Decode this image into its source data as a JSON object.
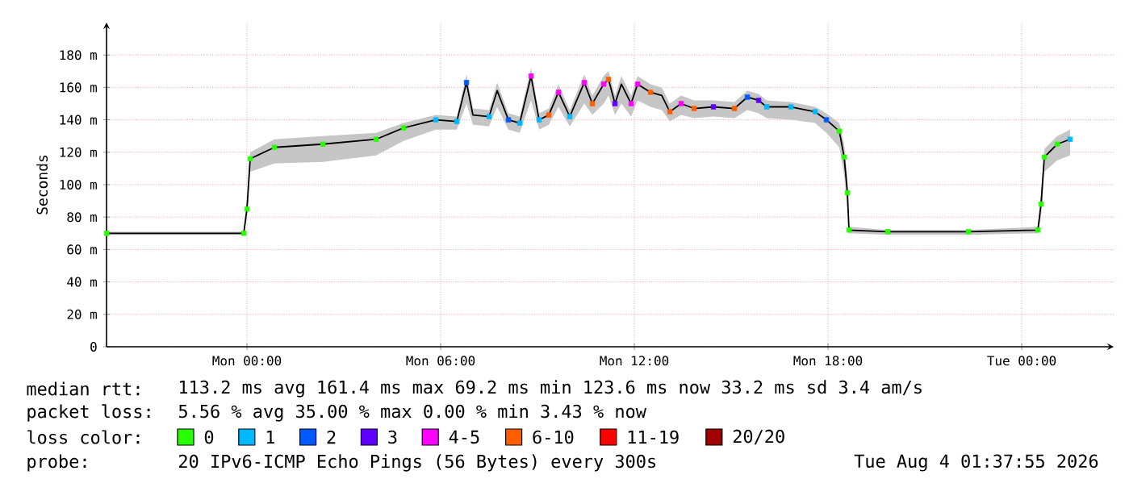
{
  "chart_data": {
    "type": "line",
    "ylabel": "Seconds",
    "xlim": [
      "2026-08-02T19:39",
      "2026-08-04T02:51"
    ],
    "ylim": [
      0,
      200
    ],
    "xticks": [
      {
        "value": "2026-08-03T00:00",
        "label": "Mon 00:00"
      },
      {
        "value": "2026-08-03T06:00",
        "label": "Mon 06:00"
      },
      {
        "value": "2026-08-03T12:00",
        "label": "Mon 12:00"
      },
      {
        "value": "2026-08-03T18:00",
        "label": "Mon 18:00"
      },
      {
        "value": "2026-08-04T00:00",
        "label": "Tue 00:00"
      }
    ],
    "yticks": [
      0,
      {
        "value": 20,
        "label": "20 m"
      },
      {
        "value": 40,
        "label": "40 m"
      },
      {
        "value": 60,
        "label": "60 m"
      },
      {
        "value": 80,
        "label": "80 m"
      },
      {
        "value": 100,
        "label": "100 m"
      },
      {
        "value": 120,
        "label": "120 m"
      },
      {
        "value": 140,
        "label": "140 m"
      },
      {
        "value": 160,
        "label": "160 m"
      },
      {
        "value": 180,
        "label": "180 m"
      }
    ],
    "grid": true,
    "legend": "bottom",
    "legend_title": "loss color:",
    "marker": "square",
    "series": [
      {
        "color": "#000000",
        "marker": "none",
        "x": [
          "2026-08-02T19:39",
          "2026-08-02T23:54",
          "2026-08-03T00:00",
          "2026-08-03T00:06",
          "2026-08-03T00:51",
          "2026-08-03T02:21",
          "2026-08-03T04:00",
          "2026-08-03T04:51",
          "2026-08-03T05:51",
          "2026-08-03T06:30",
          "2026-08-03T06:48",
          "2026-08-03T07:00",
          "2026-08-03T07:30",
          "2026-08-03T07:45",
          "2026-08-03T08:06",
          "2026-08-03T08:27",
          "2026-08-03T08:48",
          "2026-08-03T09:03",
          "2026-08-03T09:21",
          "2026-08-03T09:39",
          "2026-08-03T10:00",
          "2026-08-03T10:27",
          "2026-08-03T10:42",
          "2026-08-03T11:03",
          "2026-08-03T11:12",
          "2026-08-03T11:24",
          "2026-08-03T11:36",
          "2026-08-03T11:54",
          "2026-08-03T12:06",
          "2026-08-03T12:30",
          "2026-08-03T12:51",
          "2026-08-03T13:06",
          "2026-08-03T13:27",
          "2026-08-03T13:51",
          "2026-08-03T14:27",
          "2026-08-03T15:06",
          "2026-08-03T15:30",
          "2026-08-03T15:51",
          "2026-08-03T16:06",
          "2026-08-03T16:51",
          "2026-08-03T17:36",
          "2026-08-03T17:57",
          "2026-08-03T18:21",
          "2026-08-03T18:30",
          "2026-08-03T18:36",
          "2026-08-03T18:39",
          "2026-08-03T19:51",
          "2026-08-03T22:21",
          "2026-08-04T00:30",
          "2026-08-04T00:36",
          "2026-08-04T00:42",
          "2026-08-04T01:06",
          "2026-08-04T01:30"
        ],
        "values": [
          70,
          70,
          85,
          116,
          123,
          125,
          128,
          135,
          140,
          139,
          163,
          143,
          142,
          158,
          140,
          138,
          167,
          140,
          143,
          157,
          142,
          163,
          150,
          162,
          165,
          150,
          162,
          150,
          162,
          157,
          155,
          145,
          150,
          147,
          148,
          147,
          154,
          152,
          148,
          148,
          145,
          140,
          133,
          117,
          95,
          72,
          71,
          71,
          72,
          88,
          117,
          125,
          128
        ],
        "lower": [
          69,
          69,
          80,
          108,
          113,
          114,
          118,
          127,
          134,
          134,
          150,
          137,
          136,
          148,
          134,
          132,
          152,
          134,
          137,
          148,
          136,
          150,
          143,
          150,
          155,
          143,
          150,
          142,
          152,
          148,
          146,
          139,
          143,
          141,
          142,
          141,
          146,
          144,
          141,
          140,
          138,
          132,
          123,
          106,
          85,
          70,
          69,
          69,
          70,
          80,
          108,
          115,
          118
        ],
        "upper": [
          71,
          71,
          90,
          120,
          128,
          130,
          132,
          138,
          143,
          142,
          168,
          147,
          146,
          163,
          144,
          142,
          172,
          144,
          147,
          162,
          146,
          168,
          155,
          167,
          170,
          155,
          167,
          155,
          167,
          162,
          160,
          150,
          155,
          152,
          152,
          151,
          158,
          156,
          152,
          151,
          148,
          144,
          138,
          125,
          105,
          74,
          72,
          72,
          74,
          95,
          122,
          130,
          134
        ]
      },
      {
        "type": "scatter",
        "name": "0",
        "color": "#26ff00",
        "x": [
          "2026-08-02T19:39",
          "2026-08-02T23:54",
          "2026-08-03T00:00",
          "2026-08-03T00:06",
          "2026-08-03T00:51",
          "2026-08-03T02:21",
          "2026-08-03T04:00",
          "2026-08-03T04:51",
          "2026-08-03T18:21",
          "2026-08-03T18:30",
          "2026-08-03T18:36",
          "2026-08-03T18:39",
          "2026-08-03T19:51",
          "2026-08-03T22:21",
          "2026-08-04T00:30",
          "2026-08-04T00:36",
          "2026-08-04T00:42",
          "2026-08-04T01:06"
        ],
        "values": [
          70,
          70,
          85,
          116,
          123,
          125,
          128,
          135,
          133,
          117,
          95,
          72,
          71,
          71,
          72,
          88,
          117,
          125
        ]
      },
      {
        "type": "scatter",
        "name": "1",
        "color": "#00b8ff",
        "x": [
          "2026-08-03T05:51",
          "2026-08-03T06:30",
          "2026-08-03T07:30",
          "2026-08-03T08:27",
          "2026-08-03T09:03",
          "2026-08-03T10:00",
          "2026-08-03T16:06",
          "2026-08-03T16:51",
          "2026-08-03T17:36",
          "2026-08-04T01:30"
        ],
        "values": [
          140,
          139,
          142,
          138,
          140,
          142,
          148,
          148,
          145,
          128
        ]
      },
      {
        "type": "scatter",
        "name": "2",
        "color": "#0059ff",
        "x": [
          "2026-08-03T06:48",
          "2026-08-03T08:06",
          "2026-08-03T15:30",
          "2026-08-03T17:57"
        ],
        "values": [
          163,
          140,
          154,
          140
        ]
      },
      {
        "type": "scatter",
        "name": "3",
        "color": "#5e00ff",
        "x": [
          "2026-08-03T11:24",
          "2026-08-03T14:27",
          "2026-08-03T15:51"
        ],
        "values": [
          150,
          148,
          152
        ]
      },
      {
        "type": "scatter",
        "name": "4-5",
        "color": "#ff00ff",
        "x": [
          "2026-08-03T08:48",
          "2026-08-03T09:39",
          "2026-08-03T10:27",
          "2026-08-03T11:03",
          "2026-08-03T11:54",
          "2026-08-03T12:06",
          "2026-08-03T13:27"
        ],
        "values": [
          167,
          157,
          163,
          162,
          150,
          162,
          150
        ]
      },
      {
        "type": "scatter",
        "name": "6-10",
        "color": "#ff5e00",
        "x": [
          "2026-08-03T09:21",
          "2026-08-03T10:42",
          "2026-08-03T11:12",
          "2026-08-03T12:30",
          "2026-08-03T13:06",
          "2026-08-03T13:51",
          "2026-08-03T15:06"
        ],
        "values": [
          143,
          150,
          165,
          157,
          145,
          147,
          147
        ]
      },
      {
        "type": "scatter",
        "name": "11-19",
        "color": "#ff0000"
      },
      {
        "type": "scatter",
        "name": "20/20",
        "color": "#a10000"
      }
    ],
    "annotations": [
      "median rtt:",
      "113.2 ms avg  161.4 ms max  69.2 ms min  123.6 ms now  33.2 ms sd  3.4   am/s",
      "packet loss:",
      "5.56 % avg  35.00 % max  0.00 % min  3.43 % now",
      "probe:",
      "20 IPv6-ICMP Echo Pings (56 Bytes) every 300s",
      "Tue Aug  4 01:37:55 2026"
    ]
  }
}
